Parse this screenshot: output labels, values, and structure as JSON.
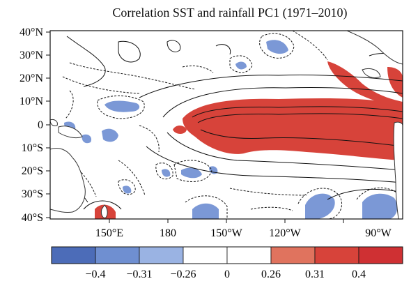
{
  "title": "Correlation SST and rainfall PC1 (1971–2010)",
  "map": {
    "lat_labels": [
      "40°N",
      "30°N",
      "20°N",
      "10°N",
      "0",
      "10°S",
      "20°S",
      "30°S",
      "40°S"
    ],
    "lon_labels": [
      "150°E",
      "180",
      "150°W",
      "120°W",
      "90°W"
    ],
    "land_color": "#ffffff",
    "positive_color": "#d7433a",
    "negative_color": "#6f8fd1",
    "contour_solid_meaning": "positive",
    "contour_dashed_meaning": "negative"
  },
  "colorbar": {
    "tick_labels": [
      "−0.4",
      "−0.31",
      "−0.26",
      "0",
      "0.26",
      "0.31",
      "0.4"
    ],
    "bins": [
      {
        "color": "#4c6cb8"
      },
      {
        "color": "#6f8fd1"
      },
      {
        "color": "#9ab3e3"
      },
      {
        "color": "#ffffff"
      },
      {
        "color": "#ffffff"
      },
      {
        "color": "#e0735e"
      },
      {
        "color": "#d7433a"
      },
      {
        "color": "#cf3033"
      }
    ]
  }
}
